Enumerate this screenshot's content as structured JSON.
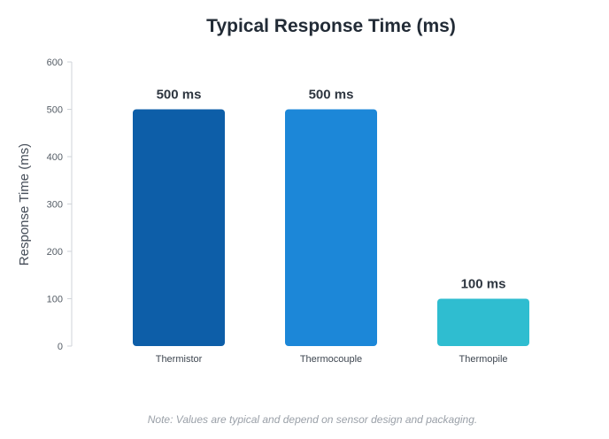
{
  "chart_data": {
    "type": "bar",
    "title": "Typical Response Time (ms)",
    "ylabel": "Response Time (ms)",
    "xlabel": "",
    "categories": [
      "Thermistor",
      "Thermocouple",
      "Thermopile"
    ],
    "values": [
      500,
      500,
      100
    ],
    "data_labels": [
      "500 ms",
      "500 ms",
      "100 ms"
    ],
    "colors": [
      "#0d5ea8",
      "#1c87d8",
      "#2fbdd0"
    ],
    "ylim": [
      0,
      600
    ],
    "yticks": [
      0,
      100,
      200,
      300,
      400,
      500,
      600
    ],
    "grid": false,
    "legend": "none"
  },
  "note": "Note: Values are typical and depend on sensor design and packaging."
}
